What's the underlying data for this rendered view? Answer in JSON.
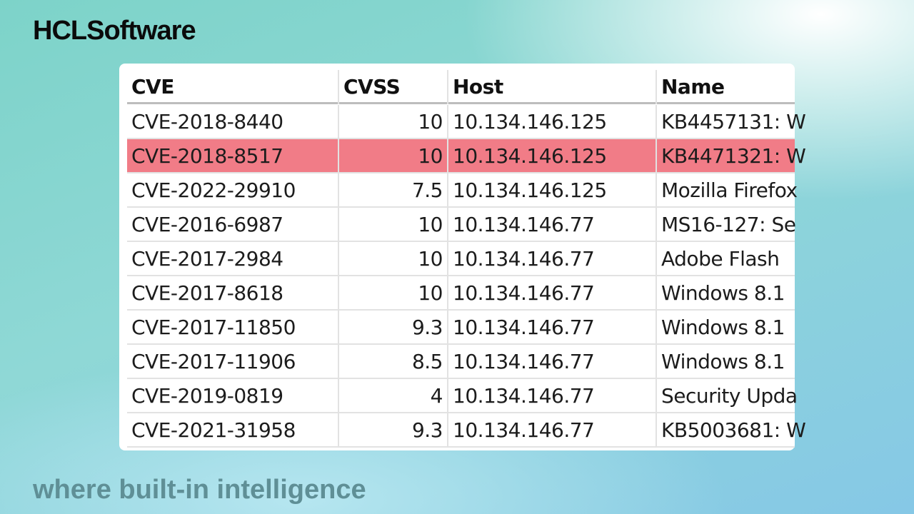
{
  "brand": "HCLSoftware",
  "tagline": "where built-in intelligence",
  "table": {
    "columns": [
      "CVE",
      "CVSS",
      "Host",
      "Name"
    ],
    "highlight_color": "#f17c87",
    "rows": [
      {
        "cve": "CVE-2018-8440",
        "cvss": "10",
        "host": "10.134.146.125",
        "name": "KB4457131: W",
        "highlighted": false
      },
      {
        "cve": "CVE-2018-8517",
        "cvss": "10",
        "host": "10.134.146.125",
        "name": "KB4471321: W",
        "highlighted": true
      },
      {
        "cve": "CVE-2022-29910",
        "cvss": "7.5",
        "host": "10.134.146.125",
        "name": "Mozilla Firefox",
        "highlighted": false
      },
      {
        "cve": "CVE-2016-6987",
        "cvss": "10",
        "host": "10.134.146.77",
        "name": "MS16-127: Se",
        "highlighted": false
      },
      {
        "cve": "CVE-2017-2984",
        "cvss": "10",
        "host": "10.134.146.77",
        "name": "Adobe Flash",
        "highlighted": false
      },
      {
        "cve": "CVE-2017-8618",
        "cvss": "10",
        "host": "10.134.146.77",
        "name": "Windows 8.1",
        "highlighted": false
      },
      {
        "cve": "CVE-2017-11850",
        "cvss": "9.3",
        "host": "10.134.146.77",
        "name": "Windows 8.1",
        "highlighted": false
      },
      {
        "cve": "CVE-2017-11906",
        "cvss": "8.5",
        "host": "10.134.146.77",
        "name": "Windows 8.1",
        "highlighted": false
      },
      {
        "cve": "CVE-2019-0819",
        "cvss": "4",
        "host": "10.134.146.77",
        "name": "Security Upda",
        "highlighted": false
      },
      {
        "cve": "CVE-2021-31958",
        "cvss": "9.3",
        "host": "10.134.146.77",
        "name": "KB5003681: W",
        "highlighted": false
      }
    ]
  }
}
